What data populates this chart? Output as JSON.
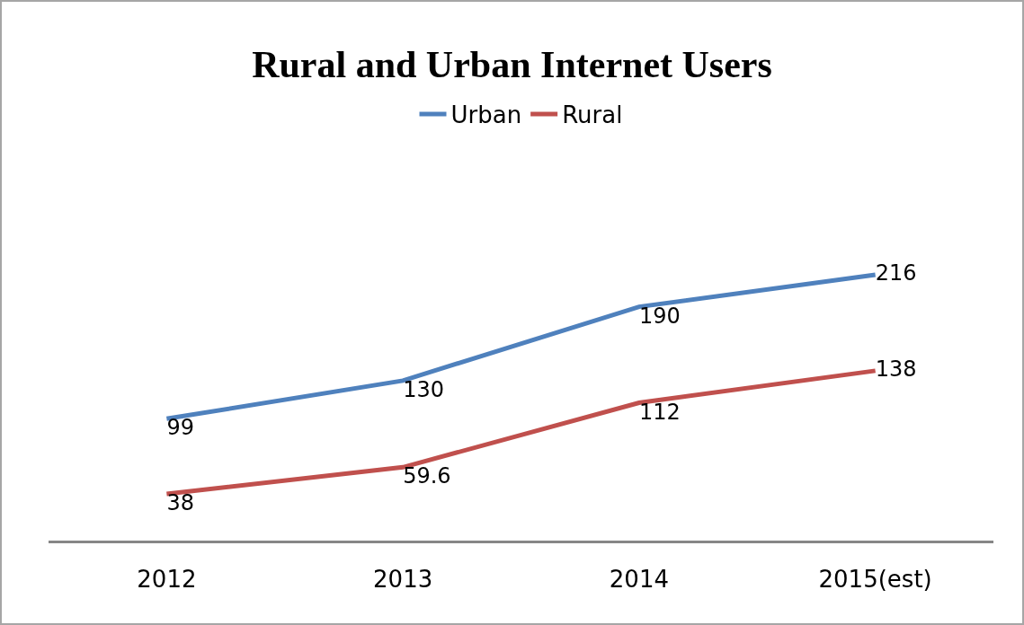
{
  "chart_data": {
    "type": "line",
    "title": "Rural and Urban Internet Users",
    "categories": [
      "2012",
      "2013",
      "2014",
      "2015(est)"
    ],
    "series": [
      {
        "name": "Urban",
        "color": "#4f81bd",
        "values": [
          99,
          130,
          190,
          216
        ]
      },
      {
        "name": "Rural",
        "color": "#c0504d",
        "values": [
          38,
          59.6,
          112,
          138
        ]
      }
    ],
    "data_labels": true,
    "legend": "top",
    "grid": false,
    "marker": "none",
    "line_style": "solid"
  }
}
